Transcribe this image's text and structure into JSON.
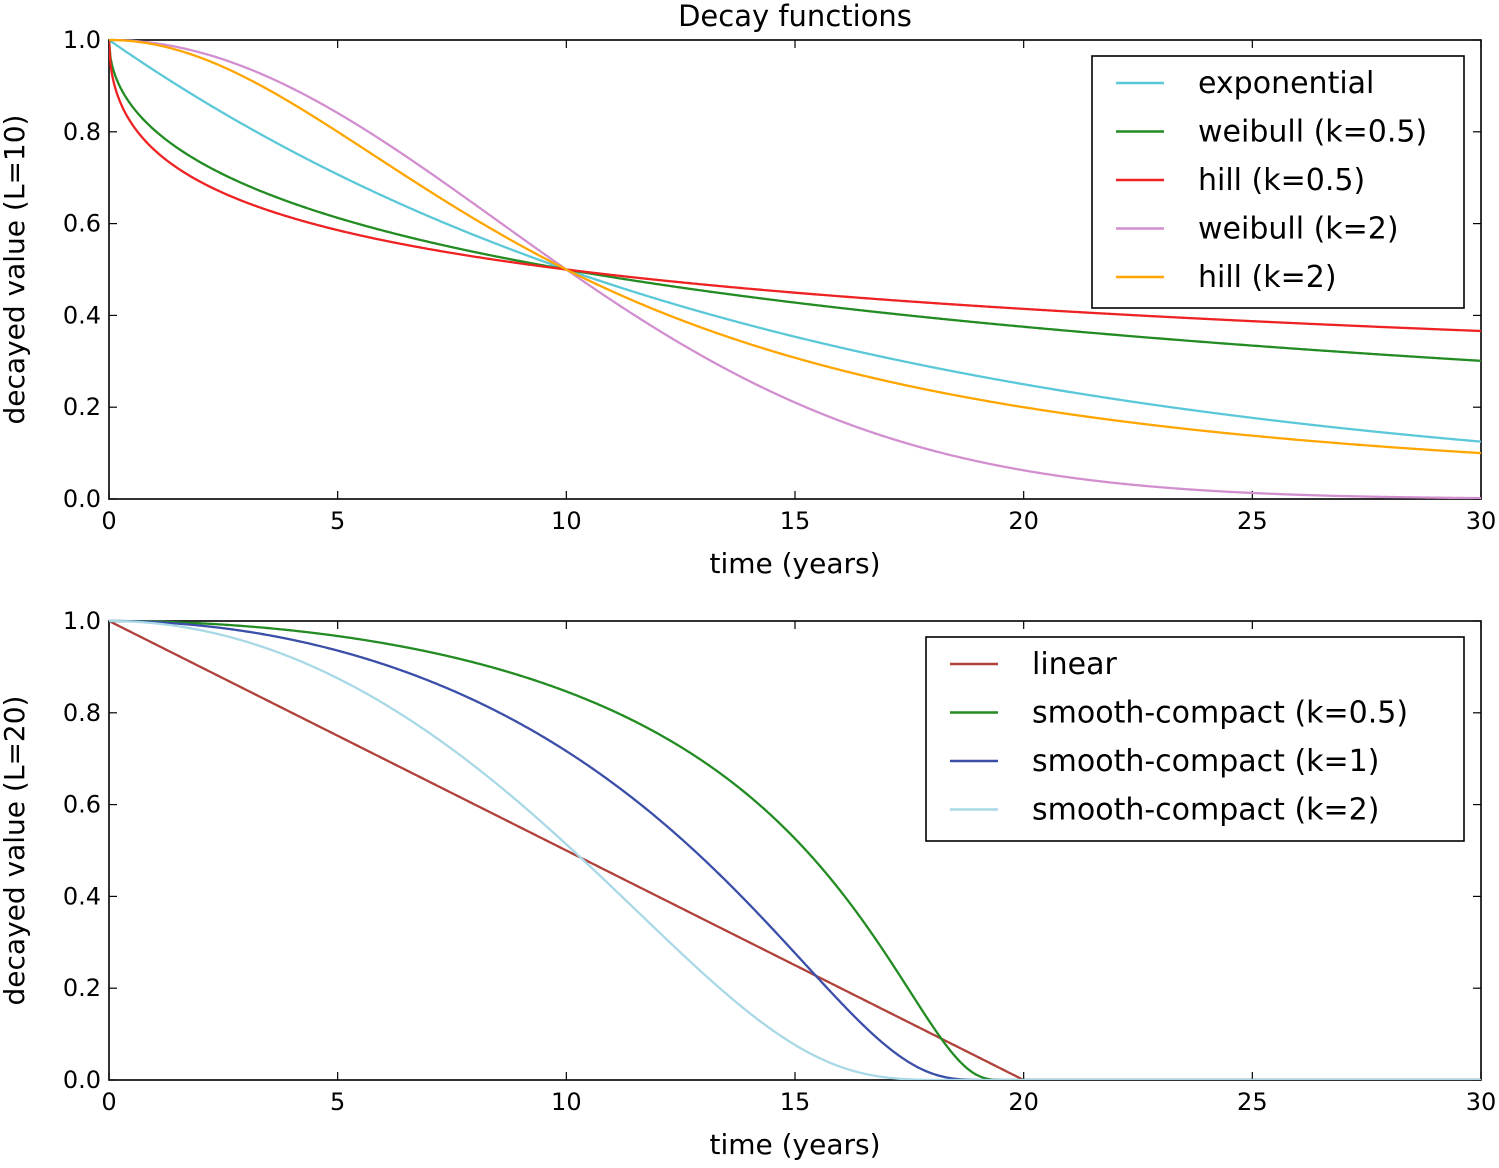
{
  "chart_data": [
    {
      "type": "line",
      "title": "Decay functions",
      "xlabel": "time (years)",
      "ylabel": "decayed value (L=10)",
      "xlim": [
        0,
        30
      ],
      "ylim": [
        0,
        1
      ],
      "xticks": [
        0,
        5,
        10,
        15,
        20,
        25,
        30
      ],
      "xtick_labels": [
        "0",
        "5",
        "10",
        "15",
        "20",
        "25",
        "30"
      ],
      "yticks": [
        0,
        0.2,
        0.4,
        0.6,
        0.8,
        1.0
      ],
      "ytick_labels": [
        "0.0",
        "0.2",
        "0.4",
        "0.6",
        "0.8",
        "1.0"
      ],
      "grid": false,
      "legend_position": "top-right",
      "L": 10,
      "series": [
        {
          "name": "exponential",
          "function": "exponential",
          "color": "#5bc8d8"
        },
        {
          "name": "weibull (k=0.5)",
          "function": "weibull",
          "k": 0.5,
          "color": "#228b22"
        },
        {
          "name": "hill (k=0.5)",
          "function": "hill",
          "k": 0.5,
          "color": "#ee2222"
        },
        {
          "name": "weibull (k=2)",
          "function": "weibull",
          "k": 2,
          "color": "#d28fcf"
        },
        {
          "name": "hill (k=2)",
          "function": "hill",
          "k": 2,
          "color": "#ffa500"
        }
      ]
    },
    {
      "type": "line",
      "title": "",
      "xlabel": "time (years)",
      "ylabel": "decayed value (L=20)",
      "xlim": [
        0,
        30
      ],
      "ylim": [
        0,
        1
      ],
      "xticks": [
        0,
        5,
        10,
        15,
        20,
        25,
        30
      ],
      "xtick_labels": [
        "0",
        "5",
        "10",
        "15",
        "20",
        "25",
        "30"
      ],
      "yticks": [
        0,
        0.2,
        0.4,
        0.6,
        0.8,
        1.0
      ],
      "ytick_labels": [
        "0.0",
        "0.2",
        "0.4",
        "0.6",
        "0.8",
        "1.0"
      ],
      "grid": false,
      "legend_position": "top-right",
      "L": 20,
      "series": [
        {
          "name": "linear",
          "function": "linear",
          "color": "#b0403a"
        },
        {
          "name": "smooth-compact (k=0.5)",
          "function": "smooth-compact",
          "k": 0.5,
          "color": "#228b22"
        },
        {
          "name": "smooth-compact (k=1)",
          "function": "smooth-compact",
          "k": 1,
          "color": "#3b4ea8"
        },
        {
          "name": "smooth-compact (k=2)",
          "function": "smooth-compact",
          "k": 2,
          "color": "#a9d8e6"
        }
      ]
    }
  ]
}
